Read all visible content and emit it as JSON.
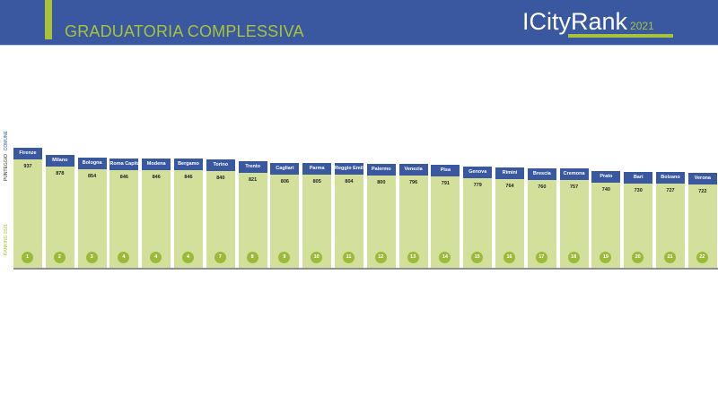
{
  "header": {
    "title": "GRADUATORIA COMPLESSIVA",
    "logo": "ICityRank",
    "logo_year": "2021"
  },
  "colors": {
    "header_blue": "#3a58a0",
    "accent_green": "#a8c23a",
    "bar_fill": "#d3e09c",
    "rank_badge": "#9cba3a"
  },
  "side_labels": {
    "comune": "COMUNE",
    "punteggio": "PUNTEGGIO",
    "ranking": "RANKING 2021"
  },
  "chart_data": {
    "type": "bar",
    "categories": [
      "Firenze",
      "Milano",
      "Bologna",
      "Roma Capitale",
      "Modena",
      "Bergamo",
      "Torino",
      "Trento",
      "Cagliari",
      "Parma",
      "Reggio Emilia",
      "Palermo",
      "Venezia",
      "Pisa",
      "Genova",
      "Rimini",
      "Brescia",
      "Cremona",
      "Prato",
      "Bari",
      "Bolzano",
      "Verona"
    ],
    "values": [
      937,
      878,
      854,
      846,
      846,
      846,
      840,
      821,
      806,
      805,
      804,
      800,
      796,
      791,
      779,
      764,
      760,
      757,
      740,
      730,
      727,
      722
    ],
    "ranks": [
      1,
      2,
      3,
      4,
      4,
      4,
      7,
      8,
      9,
      10,
      11,
      12,
      13,
      14,
      15,
      16,
      17,
      18,
      19,
      20,
      21,
      22
    ],
    "title": "GRADUATORIA COMPLESSIVA",
    "grid": false
  }
}
